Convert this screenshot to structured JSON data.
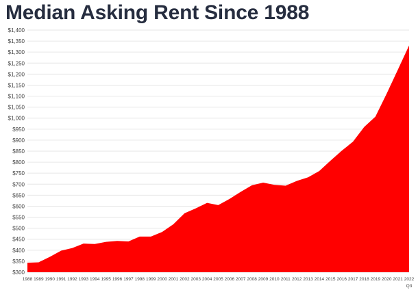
{
  "chart_data": {
    "type": "area",
    "title": "Median Asking Rent Since 1988",
    "x": [
      "1988",
      "1989",
      "1990",
      "1991",
      "1992",
      "1993",
      "1994",
      "1995",
      "1996",
      "1997",
      "1998",
      "1999",
      "2000",
      "2001",
      "2002",
      "2003",
      "2004",
      "2005",
      "2006",
      "2007",
      "2008",
      "2009",
      "2010",
      "2011",
      "2012",
      "2013",
      "2014",
      "2015",
      "2016",
      "2017",
      "2018",
      "2019",
      "2020",
      "2021",
      "2022"
    ],
    "x_sublabel": {
      "2022": "Q3"
    },
    "series": [
      {
        "values": [
          343,
          345,
          370,
          398,
          410,
          430,
          428,
          438,
          442,
          440,
          462,
          462,
          483,
          518,
          568,
          590,
          615,
          605,
          633,
          665,
          695,
          707,
          697,
          693,
          715,
          731,
          760,
          807,
          852,
          893,
          960,
          1007,
          1111,
          1220,
          1330
        ]
      }
    ],
    "ylim": [
      300,
      1400
    ],
    "y_ticks": [
      "$300",
      "$350",
      "$400",
      "$450",
      "$500",
      "$550",
      "$600",
      "$650",
      "$700",
      "$750",
      "$800",
      "$850",
      "$900",
      "$950",
      "$1,000",
      "$1,050",
      "$1,100",
      "$1,150",
      "$1,200",
      "$1,250",
      "$1,300",
      "$1,350",
      "$1,400"
    ],
    "xlabel": "",
    "ylabel": "",
    "grid": true,
    "legend": "none",
    "fill_color": "#ff0000",
    "grid_color": "#e6e6e6"
  }
}
